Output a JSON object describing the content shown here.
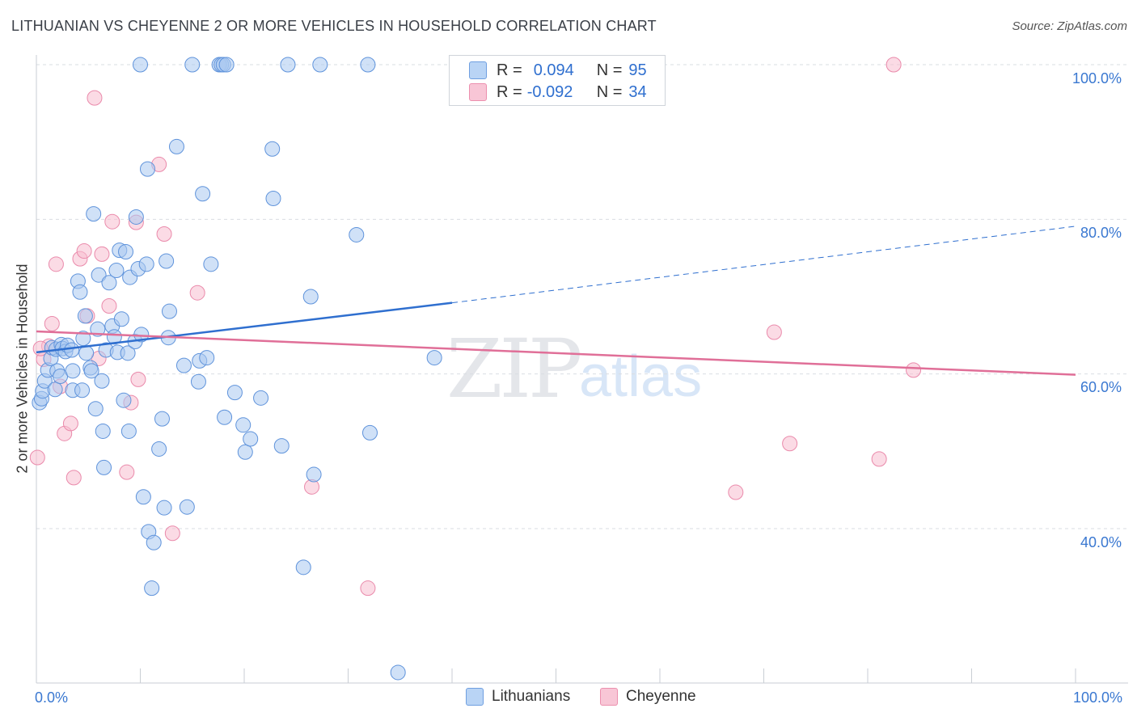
{
  "title": "LITHUANIAN VS CHEYENNE 2 OR MORE VEHICLES IN HOUSEHOLD CORRELATION CHART",
  "source": "Source: ZipAtlas.com",
  "watermark": {
    "zip": "ZIP",
    "atlas": "atlas"
  },
  "legend": {
    "r_label": "R =",
    "n_label": "N =",
    "rows": [
      {
        "r": "0.094",
        "n": "95",
        "fill": "#b9d4f5",
        "stroke": "#6f9fe0"
      },
      {
        "r": "-0.092",
        "n": "34",
        "fill": "#f8c6d6",
        "stroke": "#ec8fae"
      }
    ]
  },
  "bottom_legend": [
    "Lithuanians",
    "Cheyenne"
  ],
  "colors": {
    "blue_fill": "#a9c8f0",
    "blue_stroke": "#5f93db",
    "blue_line": "#2f6fcf",
    "pink_fill": "#f7bdd0",
    "pink_stroke": "#ea8aab",
    "pink_line": "#e06f98",
    "tick_text": "#3a78d1",
    "grid": "#d9dde2"
  },
  "chart_data": {
    "type": "scatter",
    "title": "LITHUANIAN VS CHEYENNE 2 OR MORE VEHICLES IN HOUSEHOLD CORRELATION CHART",
    "xlabel": "",
    "ylabel": "2 or more Vehicles in Household",
    "xlim": [
      0,
      100
    ],
    "ylim": [
      20,
      100
    ],
    "x_tick_labels": [
      "0.0%",
      "100.0%"
    ],
    "y_ticks": [
      40,
      60,
      80,
      100
    ],
    "y_tick_labels": [
      "40.0%",
      "60.0%",
      "80.0%",
      "100.0%"
    ],
    "grid": true,
    "legend_position": "top-center",
    "series": [
      {
        "name": "Lithuanians",
        "r": 0.094,
        "n": 95,
        "trend": {
          "x": [
            0,
            40
          ],
          "y": [
            62.8,
            69.2
          ],
          "dashed_x": [
            40,
            100
          ],
          "dashed_y": [
            69.2,
            79.1
          ]
        },
        "points": [
          [
            0.3,
            56.3
          ],
          [
            0.5,
            56.8
          ],
          [
            0.6,
            57.8
          ],
          [
            0.8,
            59.1
          ],
          [
            1.1,
            60.5
          ],
          [
            1.4,
            62.0
          ],
          [
            1.5,
            63.4
          ],
          [
            1.8,
            58.0
          ],
          [
            1.9,
            63.2
          ],
          [
            2.0,
            60.4
          ],
          [
            2.3,
            59.7
          ],
          [
            2.4,
            63.8
          ],
          [
            2.5,
            63.3
          ],
          [
            2.8,
            62.9
          ],
          [
            3.0,
            63.7
          ],
          [
            3.4,
            63.1
          ],
          [
            3.5,
            60.4
          ],
          [
            3.5,
            57.9
          ],
          [
            4.0,
            72.0
          ],
          [
            4.2,
            70.6
          ],
          [
            4.4,
            57.9
          ],
          [
            4.5,
            64.6
          ],
          [
            4.7,
            67.5
          ],
          [
            4.8,
            62.7
          ],
          [
            5.2,
            60.8
          ],
          [
            5.3,
            60.4
          ],
          [
            5.5,
            80.7
          ],
          [
            5.7,
            55.5
          ],
          [
            5.9,
            65.8
          ],
          [
            6.0,
            72.8
          ],
          [
            6.3,
            59.1
          ],
          [
            6.4,
            52.6
          ],
          [
            6.5,
            47.9
          ],
          [
            6.7,
            63.1
          ],
          [
            7.0,
            71.8
          ],
          [
            7.3,
            66.2
          ],
          [
            7.5,
            64.8
          ],
          [
            7.7,
            73.4
          ],
          [
            7.8,
            62.8
          ],
          [
            8.0,
            76.0
          ],
          [
            8.2,
            67.1
          ],
          [
            8.4,
            56.6
          ],
          [
            8.6,
            75.8
          ],
          [
            8.8,
            62.7
          ],
          [
            8.9,
            52.6
          ],
          [
            9.0,
            72.5
          ],
          [
            9.5,
            64.2
          ],
          [
            9.6,
            80.3
          ],
          [
            9.8,
            73.6
          ],
          [
            10.0,
            100.0
          ],
          [
            10.1,
            65.1
          ],
          [
            10.3,
            44.1
          ],
          [
            10.6,
            74.2
          ],
          [
            10.7,
            86.5
          ],
          [
            10.8,
            39.6
          ],
          [
            11.3,
            38.2
          ],
          [
            11.1,
            32.3
          ],
          [
            11.8,
            50.3
          ],
          [
            12.1,
            54.2
          ],
          [
            12.3,
            42.7
          ],
          [
            12.5,
            74.6
          ],
          [
            12.7,
            64.7
          ],
          [
            12.8,
            68.1
          ],
          [
            13.5,
            89.4
          ],
          [
            14.2,
            61.1
          ],
          [
            14.5,
            42.8
          ],
          [
            15.0,
            100.0
          ],
          [
            15.6,
            59.0
          ],
          [
            15.7,
            61.7
          ],
          [
            16.0,
            83.3
          ],
          [
            16.4,
            62.1
          ],
          [
            16.8,
            74.2
          ],
          [
            17.6,
            100.0
          ],
          [
            17.8,
            100.0
          ],
          [
            18.0,
            100.0
          ],
          [
            18.1,
            54.4
          ],
          [
            18.3,
            100.0
          ],
          [
            19.1,
            57.6
          ],
          [
            19.9,
            53.4
          ],
          [
            20.1,
            49.9
          ],
          [
            20.6,
            51.6
          ],
          [
            21.6,
            56.9
          ],
          [
            22.7,
            89.1
          ],
          [
            22.8,
            82.7
          ],
          [
            23.6,
            50.7
          ],
          [
            24.2,
            100.0
          ],
          [
            25.7,
            35.0
          ],
          [
            26.4,
            70.0
          ],
          [
            26.7,
            47.0
          ],
          [
            27.3,
            100.0
          ],
          [
            30.8,
            78.0
          ],
          [
            31.9,
            100.0
          ],
          [
            32.1,
            52.4
          ],
          [
            34.8,
            21.4
          ],
          [
            38.3,
            62.1
          ]
        ]
      },
      {
        "name": "Cheyenne",
        "r": -0.092,
        "n": 34,
        "trend": {
          "x": [
            0,
            100
          ],
          "y": [
            65.5,
            59.9
          ]
        },
        "points": [
          [
            0.1,
            49.2
          ],
          [
            0.7,
            61.9
          ],
          [
            1.2,
            63.6
          ],
          [
            1.5,
            66.5
          ],
          [
            1.9,
            74.2
          ],
          [
            2.3,
            58.4
          ],
          [
            2.7,
            52.3
          ],
          [
            3.3,
            53.6
          ],
          [
            3.6,
            46.6
          ],
          [
            4.2,
            74.9
          ],
          [
            4.6,
            75.9
          ],
          [
            4.9,
            67.5
          ],
          [
            5.6,
            95.7
          ],
          [
            6.0,
            62.0
          ],
          [
            6.3,
            75.5
          ],
          [
            7.0,
            68.8
          ],
          [
            7.3,
            79.7
          ],
          [
            8.7,
            47.3
          ],
          [
            9.1,
            56.3
          ],
          [
            9.6,
            79.6
          ],
          [
            9.8,
            59.3
          ],
          [
            11.8,
            87.1
          ],
          [
            12.3,
            78.1
          ],
          [
            13.1,
            39.4
          ],
          [
            15.5,
            70.5
          ],
          [
            26.5,
            45.4
          ],
          [
            31.9,
            32.3
          ],
          [
            67.3,
            44.7
          ],
          [
            71.0,
            65.4
          ],
          [
            72.5,
            51.0
          ],
          [
            81.1,
            49.0
          ],
          [
            82.5,
            100.0
          ],
          [
            84.4,
            60.5
          ],
          [
            0.4,
            63.3
          ]
        ]
      }
    ]
  }
}
